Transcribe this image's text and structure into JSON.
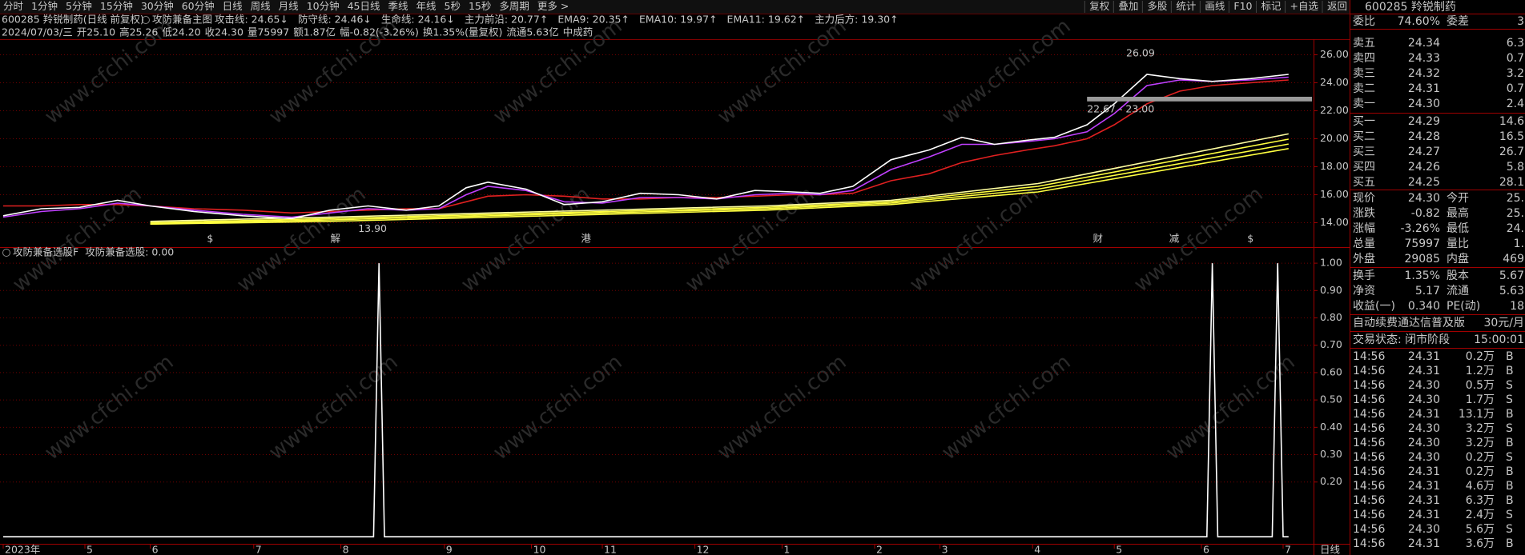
{
  "toolbar": {
    "periods": [
      "分时",
      "1分钟",
      "5分钟",
      "15分钟",
      "30分钟",
      "60分钟",
      "日线",
      "周线",
      "月线",
      "10分钟",
      "45日线",
      "季线",
      "年线",
      "5秒",
      "15秒",
      "多周期",
      "更多 >"
    ],
    "active": "日线",
    "tools": [
      "复权",
      "叠加",
      "多股",
      "统计",
      "画线",
      "F10",
      "标记",
      "+自选",
      "返回"
    ]
  },
  "info": {
    "title": "600285 羚锐制药(日线 前复权)",
    "indicator": "攻防兼备主图",
    "readouts": [
      {
        "text": "攻击线: 24.65↓",
        "color": "#ffffff"
      },
      {
        "text": "防守线: 24.46↓",
        "color": "#e040ff"
      },
      {
        "text": "生命线: 24.16↓",
        "color": "#ff3030"
      },
      {
        "text": "主力前沿: 20.77↑",
        "color": "#00e000"
      },
      {
        "text": "EMA9: 20.35↑",
        "color": "#ffffff"
      },
      {
        "text": "EMA10: 19.97↑",
        "color": "#ffff40"
      },
      {
        "text": "EMA11: 19.62↑",
        "color": "#ffff40"
      },
      {
        "text": "主力后方: 19.30↑",
        "color": "#ffff40"
      }
    ],
    "bar": [
      {
        "text": "2024/07/03/三",
        "color": "#c8c8c8"
      },
      {
        "text": "开25.10",
        "color": "#ff3030"
      },
      {
        "text": "高25.26",
        "color": "#ff3030"
      },
      {
        "text": "低24.20",
        "color": "#00e000"
      },
      {
        "text": "收24.30",
        "color": "#00e000"
      },
      {
        "text": "量75997",
        "color": "#ffff40"
      },
      {
        "text": "额1.87亿",
        "color": "#c8c8c8"
      },
      {
        "text": "幅-0.82(-3.26%)",
        "color": "#00e000"
      },
      {
        "text": "换1.35%(量复权)",
        "color": "#c8c8c8"
      },
      {
        "text": "流通5.63亿",
        "color": "#c8c8c8"
      },
      {
        "text": "中成药",
        "color": "#ffff40"
      }
    ]
  },
  "watermark": "www.cfchi.com",
  "period_label": "日线",
  "chart_data": [
    {
      "type": "line",
      "xlim": [
        0,
        240
      ],
      "ylim": [
        12.6,
        27.0
      ],
      "yticks": [
        {
          "value": 14,
          "label": "14.00"
        },
        {
          "value": 16,
          "label": "16.00"
        },
        {
          "value": 18,
          "label": "18.00"
        },
        {
          "value": 20,
          "label": "20.00"
        },
        {
          "value": 22,
          "label": "22.00"
        },
        {
          "value": 24,
          "label": "24.00"
        },
        {
          "value": 26,
          "label": "26.00"
        }
      ],
      "grid": true,
      "series": [
        {
          "color": "#ffff40",
          "x": [
            27,
            60,
            100,
            140,
            163,
            190,
            236
          ],
          "values": [
            13.9,
            14.1,
            14.5,
            14.9,
            15.3,
            16.2,
            19.3
          ]
        },
        {
          "color": "#ffff40",
          "x": [
            27,
            60,
            100,
            140,
            163,
            190,
            236
          ],
          "values": [
            13.95,
            14.2,
            14.6,
            15.0,
            15.4,
            16.4,
            19.62
          ]
        },
        {
          "color": "#ffff40",
          "x": [
            27,
            60,
            100,
            140,
            163,
            190,
            236
          ],
          "values": [
            14.0,
            14.3,
            14.7,
            15.1,
            15.5,
            16.6,
            19.97
          ]
        },
        {
          "color": "#ffffa0",
          "x": [
            27,
            60,
            100,
            140,
            163,
            190,
            236
          ],
          "values": [
            14.1,
            14.4,
            14.8,
            15.2,
            15.6,
            16.8,
            20.35
          ]
        },
        {
          "color": "#e02020",
          "x": [
            0,
            7,
            14,
            21,
            27,
            35,
            44,
            53,
            60,
            67,
            74,
            80,
            85,
            89,
            96,
            103,
            110,
            117,
            124,
            131,
            138,
            145,
            150,
            156,
            163,
            170,
            176,
            182,
            188,
            193,
            199,
            204,
            210,
            216,
            222,
            229,
            236
          ],
          "values": [
            15.2,
            15.2,
            15.3,
            15.3,
            15.2,
            15.0,
            14.9,
            14.7,
            14.8,
            14.9,
            15.0,
            15.0,
            15.5,
            15.9,
            16.0,
            15.9,
            15.7,
            15.7,
            15.8,
            15.8,
            15.9,
            16.0,
            16.0,
            16.1,
            17.0,
            17.5,
            18.3,
            18.8,
            19.2,
            19.5,
            20.0,
            21.0,
            22.5,
            23.4,
            23.8,
            24.0,
            24.2
          ]
        },
        {
          "color": "#c040ff",
          "x": [
            0,
            7,
            14,
            21,
            27,
            35,
            44,
            53,
            60,
            67,
            74,
            80,
            85,
            89,
            96,
            103,
            110,
            117,
            124,
            131,
            138,
            145,
            150,
            156,
            163,
            170,
            176,
            182,
            188,
            193,
            199,
            204,
            210,
            216,
            222,
            229,
            236
          ],
          "values": [
            14.4,
            14.8,
            15.0,
            15.4,
            15.2,
            14.9,
            14.6,
            14.4,
            14.7,
            15.0,
            14.9,
            15.0,
            16.0,
            16.6,
            16.3,
            15.5,
            15.4,
            15.8,
            15.8,
            15.7,
            16.0,
            16.1,
            16.0,
            16.3,
            17.8,
            18.7,
            19.6,
            19.6,
            19.8,
            20.0,
            20.5,
            21.8,
            23.8,
            24.2,
            24.1,
            24.2,
            24.4
          ]
        },
        {
          "color": "#ffffff",
          "x": [
            0,
            7,
            14,
            21,
            27,
            35,
            44,
            53,
            60,
            67,
            74,
            80,
            85,
            89,
            96,
            103,
            110,
            117,
            124,
            131,
            138,
            145,
            150,
            156,
            163,
            170,
            176,
            182,
            188,
            193,
            199,
            204,
            210,
            216,
            222,
            229,
            236
          ],
          "values": [
            14.5,
            15.0,
            15.1,
            15.6,
            15.2,
            14.8,
            14.5,
            14.3,
            14.9,
            15.2,
            14.9,
            15.2,
            16.5,
            16.9,
            16.4,
            15.3,
            15.5,
            16.1,
            16.0,
            15.7,
            16.3,
            16.2,
            16.1,
            16.6,
            18.5,
            19.2,
            20.1,
            19.6,
            19.9,
            20.1,
            21.0,
            22.5,
            24.6,
            24.3,
            24.1,
            24.3,
            24.6
          ]
        }
      ],
      "annotations": [
        {
          "label": "26.09",
          "value": 26.09,
          "x": 205
        },
        {
          "label": "13.90",
          "value": 13.9,
          "x": 64
        }
      ],
      "range": {
        "label": "22.67 - 23.00",
        "low": 22.67,
        "high": 23.0,
        "x": 199
      },
      "events": [
        {
          "x": 38,
          "label": "$",
          "color": "#ff3030"
        },
        {
          "x": 61,
          "label": "解",
          "color": "#00c060"
        },
        {
          "x": 107,
          "label": "港",
          "color": "#00c060"
        },
        {
          "x": 201,
          "label": "财",
          "color": "#3090ff"
        },
        {
          "x": 215,
          "label": "减",
          "color": "#00c060"
        },
        {
          "x": 229,
          "label": "$",
          "color": "#ff3030"
        }
      ]
    },
    {
      "type": "line",
      "title": "攻防兼备选股F",
      "readout": "攻防兼备选股: 0.00",
      "xlim": [
        0,
        240
      ],
      "ylim": [
        -0.02,
        1.05
      ],
      "yticks": [
        {
          "value": 0.2,
          "label": "0.20"
        },
        {
          "value": 0.3,
          "label": "0.30"
        },
        {
          "value": 0.4,
          "label": "0.40"
        },
        {
          "value": 0.5,
          "label": "0.50"
        },
        {
          "value": 0.6,
          "label": "0.60"
        },
        {
          "value": 0.7,
          "label": "0.70"
        },
        {
          "value": 0.8,
          "label": "0.80"
        },
        {
          "value": 0.9,
          "label": "0.90"
        },
        {
          "value": 1.0,
          "label": "1.00"
        }
      ],
      "grid": true,
      "color": "#ffffff",
      "x": [
        0,
        68,
        69,
        70,
        221,
        222,
        223,
        233,
        234,
        235,
        236
      ],
      "values": [
        0,
        0,
        1,
        0,
        0,
        1,
        0,
        0,
        1,
        0,
        0
      ],
      "xticks": [
        {
          "value": 0,
          "label": "2023年"
        },
        {
          "value": 15,
          "label": "5"
        },
        {
          "value": 27,
          "label": "6"
        },
        {
          "value": 46,
          "label": "7"
        },
        {
          "value": 62,
          "label": "8"
        },
        {
          "value": 81,
          "label": "9"
        },
        {
          "value": 97,
          "label": "10"
        },
        {
          "value": 110,
          "label": "11"
        },
        {
          "value": 127,
          "label": "12"
        },
        {
          "value": 143,
          "label": "1"
        },
        {
          "value": 160,
          "label": "2"
        },
        {
          "value": 172,
          "label": "3"
        },
        {
          "value": 189,
          "label": "4"
        },
        {
          "value": 204,
          "label": "5"
        },
        {
          "value": 220,
          "label": "6"
        },
        {
          "value": 235,
          "label": "7"
        }
      ]
    }
  ],
  "quote": {
    "title": "600285 羚锐制药",
    "ratio": [
      "委比",
      "74.60%",
      "委差",
      "3"
    ],
    "book": [
      [
        "卖五",
        "24.34",
        "6.3"
      ],
      [
        "卖四",
        "24.33",
        "0.7"
      ],
      [
        "卖三",
        "24.32",
        "3.2"
      ],
      [
        "卖二",
        "24.31",
        "0.7"
      ],
      [
        "卖一",
        "24.30",
        "2.4"
      ],
      [
        "买一",
        "24.29",
        "14.6"
      ],
      [
        "买二",
        "24.28",
        "16.5"
      ],
      [
        "买三",
        "24.27",
        "26.7"
      ],
      [
        "买四",
        "24.26",
        "5.8"
      ],
      [
        "买五",
        "24.25",
        "28.1"
      ]
    ],
    "stats": [
      [
        "现价",
        "24.30",
        "今开",
        "25."
      ],
      [
        "涨跌",
        "-0.82",
        "最高",
        "25."
      ],
      [
        "涨幅",
        "-3.26%",
        "最低",
        "24."
      ],
      [
        "总量",
        "75997",
        "量比",
        "1."
      ],
      [
        "外盘",
        "29085",
        "内盘",
        "469"
      ]
    ],
    "stats2": [
      [
        "换手",
        "1.35%",
        "股本",
        "5.67"
      ],
      [
        "净资",
        "5.17",
        "流通",
        "5.63"
      ],
      [
        "收益(一)",
        "0.340",
        "PE(动)",
        "18"
      ]
    ],
    "banner": [
      "自动续费通达信普及版",
      "30元/月"
    ],
    "status": [
      "交易状态: 闭市阶段",
      "15:00:01"
    ],
    "ticks": [
      [
        "14:56",
        "24.31",
        "0.2万",
        "B"
      ],
      [
        "14:56",
        "24.31",
        "1.2万",
        "B"
      ],
      [
        "14:56",
        "24.30",
        "0.5万",
        "S"
      ],
      [
        "14:56",
        "24.30",
        "1.7万",
        "S"
      ],
      [
        "14:56",
        "24.31",
        "13.1万",
        "B"
      ],
      [
        "14:56",
        "24.30",
        "3.2万",
        "S"
      ],
      [
        "14:56",
        "24.30",
        "3.2万",
        "B"
      ],
      [
        "14:56",
        "24.30",
        "0.2万",
        "S"
      ],
      [
        "14:56",
        "24.31",
        "0.2万",
        "B"
      ],
      [
        "14:56",
        "24.31",
        "4.6万",
        "B"
      ],
      [
        "14:56",
        "24.31",
        "6.3万",
        "B"
      ],
      [
        "14:56",
        "24.31",
        "2.4万",
        "S"
      ],
      [
        "14:56",
        "24.30",
        "5.6万",
        "S"
      ],
      [
        "14:56",
        "24.31",
        "3.6万",
        "B"
      ]
    ]
  }
}
